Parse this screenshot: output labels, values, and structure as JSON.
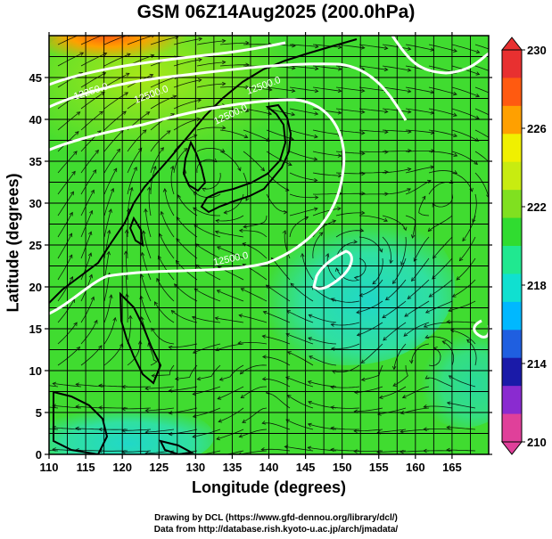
{
  "chart_data": {
    "type": "heatmap",
    "title": "GSM 06Z14Aug2025 (200.0hPa)",
    "xlabel": "Longitude (degrees)",
    "ylabel": "Latitude  (degrees)",
    "xlim": [
      110,
      170
    ],
    "ylim": [
      0,
      50
    ],
    "x_ticks": [
      "110",
      "115",
      "120",
      "125",
      "130",
      "135",
      "140",
      "145",
      "150",
      "155",
      "160",
      "165"
    ],
    "y_ticks": [
      "0",
      "5",
      "10",
      "15",
      "20",
      "25",
      "30",
      "35",
      "40",
      "45"
    ],
    "grid": true,
    "colorbar": {
      "min": 210,
      "max": 230,
      "tick_labels": [
        "230",
        "226",
        "222",
        "218",
        "214",
        "210"
      ],
      "colors": [
        "#e0409a",
        "#8a2bd0",
        "#1a1aa8",
        "#1f5fe0",
        "#00b8ff",
        "#10e0d0",
        "#20e890",
        "#30dc30",
        "#80e020",
        "#c8ec10",
        "#f0f000",
        "#ffa000",
        "#ff5a10",
        "#e83030"
      ]
    },
    "contour_labels": [
      "12500.0",
      "12500.0",
      "12500.0",
      "12250.0",
      "12500.0"
    ],
    "fields": "temperature shading, geopotential height contours, wind streamlines"
  },
  "credits": {
    "line1": "Drawing by DCL (https://www.gfd-dennou.org/library/dcl/)",
    "line2": "Data from http://database.rish.kyoto-u.ac.jp/arch/jmadata/"
  }
}
